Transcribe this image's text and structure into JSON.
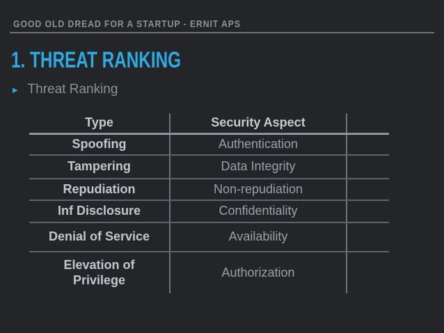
{
  "slide": {
    "kicker": "GOOD OLD DREAD FOR A STARTUP - ERNIT APS",
    "title": "1. THREAT RANKING",
    "bullet": {
      "marker": "▸",
      "label": "Threat Ranking"
    }
  },
  "table": {
    "headers": {
      "type": "Type",
      "aspect": "Security Aspect"
    },
    "rows": [
      {
        "type": "Spoofing",
        "aspect": "Authentication"
      },
      {
        "type": "Tampering",
        "aspect": "Data Integrity"
      },
      {
        "type": "Repudiation",
        "aspect": "Non-repudiation"
      },
      {
        "type": "Inf Disclosure",
        "aspect": "Confidentiality"
      },
      {
        "type": "Denial of Service",
        "aspect": "Availability"
      },
      {
        "type": "Elevation of Privilege",
        "aspect": "Authorization"
      }
    ]
  },
  "colors": {
    "background": "#242528",
    "accent_blue": "#2fa9e1",
    "kicker_gray": "#8e9194",
    "table_text_bright": "#c2c7cb",
    "table_text_dim": "#9aa0a5",
    "row_line": "#5f6468",
    "column_line": "#6e7377",
    "header_underline": "#8f9599"
  }
}
